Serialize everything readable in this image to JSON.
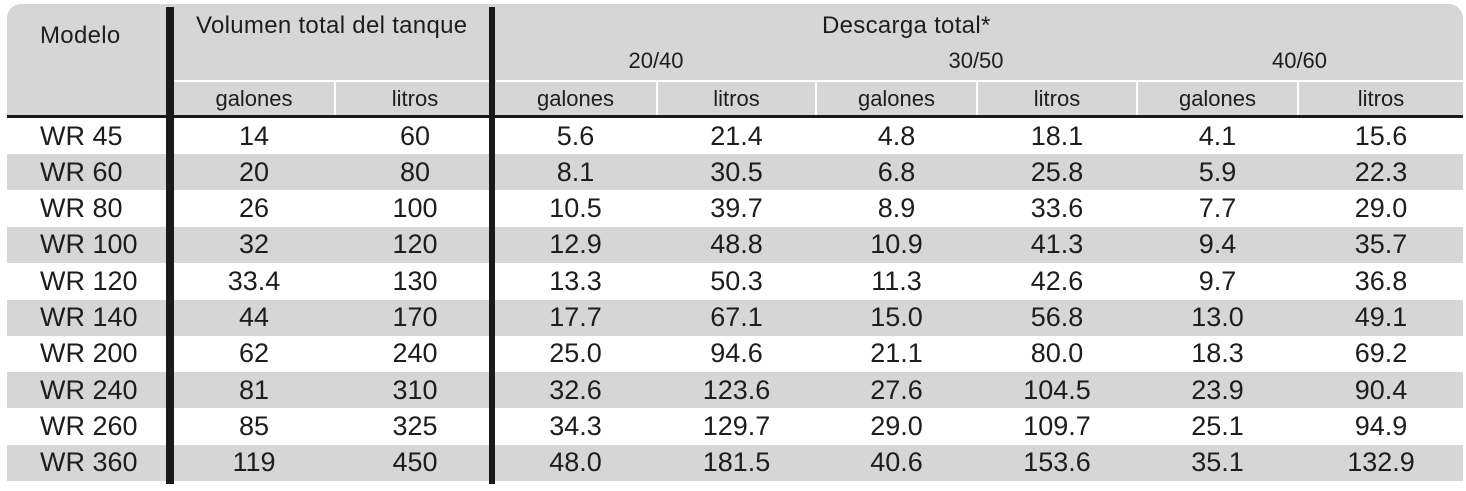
{
  "headers": {
    "modelo": "Modelo",
    "volumen": "Volumen total del tanque",
    "descarga": "Descarga total*",
    "ranges": [
      "20/40",
      "30/50",
      "40/60"
    ],
    "units": [
      "galones",
      "litros",
      "galones",
      "litros",
      "galones",
      "litros",
      "galones",
      "litros"
    ]
  },
  "rows": [
    {
      "modelo": "WR 45",
      "cells": [
        "14",
        "60",
        "5.6",
        "21.4",
        "4.8",
        "18.1",
        "4.1",
        "15.6"
      ]
    },
    {
      "modelo": "WR 60",
      "cells": [
        "20",
        "80",
        "8.1",
        "30.5",
        "6.8",
        "25.8",
        "5.9",
        "22.3"
      ]
    },
    {
      "modelo": "WR 80",
      "cells": [
        "26",
        "100",
        "10.5",
        "39.7",
        "8.9",
        "33.6",
        "7.7",
        "29.0"
      ]
    },
    {
      "modelo": "WR 100",
      "cells": [
        "32",
        "120",
        "12.9",
        "48.8",
        "10.9",
        "41.3",
        "9.4",
        "35.7"
      ]
    },
    {
      "modelo": "WR 120",
      "cells": [
        "33.4",
        "130",
        "13.3",
        "50.3",
        "11.3",
        "42.6",
        "9.7",
        "36.8"
      ]
    },
    {
      "modelo": "WR 140",
      "cells": [
        "44",
        "170",
        "17.7",
        "67.1",
        "15.0",
        "56.8",
        "13.0",
        "49.1"
      ]
    },
    {
      "modelo": "WR 200",
      "cells": [
        "62",
        "240",
        "25.0",
        "94.6",
        "21.1",
        "80.0",
        "18.3",
        "69.2"
      ]
    },
    {
      "modelo": "WR 240",
      "cells": [
        "81",
        "310",
        "32.6",
        "123.6",
        "27.6",
        "104.5",
        "23.9",
        "90.4"
      ]
    },
    {
      "modelo": "WR 260",
      "cells": [
        "85",
        "325",
        "34.3",
        "129.7",
        "29.0",
        "109.7",
        "25.1",
        "94.9"
      ]
    },
    {
      "modelo": "WR 360",
      "cells": [
        "119",
        "450",
        "48.0",
        "181.5",
        "40.6",
        "153.6",
        "35.1",
        "132.9"
      ]
    }
  ]
}
